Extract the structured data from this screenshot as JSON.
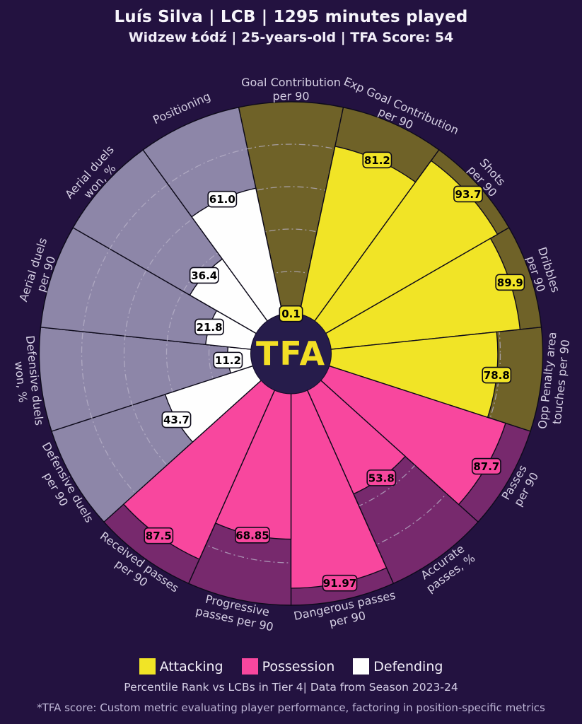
{
  "header": {
    "title": "Luís Silva | LCB | 1295 minutes played",
    "subtitle": "Widzew Łódź | 25-years-old | TFA Score: 54"
  },
  "center": {
    "label": "TFA",
    "bg": "#261c4b",
    "text_color": "#f3df25"
  },
  "chart_data": {
    "type": "bar",
    "polar": true,
    "variant": "pizza-percentile",
    "title": "Percentile Rank pizza chart",
    "rlim": [
      0,
      100
    ],
    "gridlines": [
      20,
      40,
      60,
      80
    ],
    "grid_color": "#b9b3c9",
    "border_color": "#0d0a1a",
    "label_color": "#d6d0e4",
    "value_text_color": "#000000",
    "groups": [
      {
        "name": "Attacking",
        "color": "#f1e426",
        "bg": "#6f6228"
      },
      {
        "name": "Possession",
        "color": "#f8479e",
        "bg": "#77296d"
      },
      {
        "name": "Defending",
        "color": "#fefefe",
        "bg": "#8d86a8"
      }
    ],
    "params": [
      {
        "label": "Goal Contribution\nper 90",
        "value": 0.1,
        "display": "0.1",
        "group": "Attacking"
      },
      {
        "label": "Exp Goal Contribution\nper 90",
        "value": 81.2,
        "display": "81.2",
        "group": "Attacking"
      },
      {
        "label": "Shots\nper 90",
        "value": 93.7,
        "display": "93.7",
        "group": "Attacking"
      },
      {
        "label": "Dribbles\nper 90",
        "value": 89.9,
        "display": "89.9",
        "group": "Attacking"
      },
      {
        "label": "Opp Penalty area\ntouches per 90",
        "value": 78.8,
        "display": "78.8",
        "group": "Attacking"
      },
      {
        "label": "Passes\nper 90",
        "value": 87.7,
        "display": "87.7",
        "group": "Possession"
      },
      {
        "label": "Accurate\npasses, %",
        "value": 53.8,
        "display": "53.8",
        "group": "Possession"
      },
      {
        "label": "Dangerous passes\nper 90",
        "value": 91.97,
        "display": "91.97",
        "group": "Possession"
      },
      {
        "label": "Progressive\npasses per 90",
        "value": 68.85,
        "display": "68.85",
        "group": "Possession"
      },
      {
        "label": "Received passes\nper 90",
        "value": 87.5,
        "display": "87.5",
        "group": "Possession"
      },
      {
        "label": "Defensive duels\nper 90",
        "value": 43.7,
        "display": "43.7",
        "group": "Defending"
      },
      {
        "label": "Defensive duels\nwon, %",
        "value": 11.2,
        "display": "11.2",
        "group": "Defending"
      },
      {
        "label": "Aerial duels\nper 90",
        "value": 21.8,
        "display": "21.8",
        "group": "Defending"
      },
      {
        "label": "Aerial duels\nwon, %",
        "value": 36.4,
        "display": "36.4",
        "group": "Defending"
      },
      {
        "label": "Positioning",
        "value": 61.0,
        "display": "61.0",
        "group": "Defending"
      }
    ]
  },
  "legend": {
    "items": [
      "Attacking",
      "Possession",
      "Defending"
    ]
  },
  "footnotes": {
    "percentile_line": "Percentile Rank vs LCBs in Tier 4| Data from Season 2023-24",
    "tfa_note": "*TFA score: Custom metric evaluating player performance, factoring in position-specific metrics"
  }
}
